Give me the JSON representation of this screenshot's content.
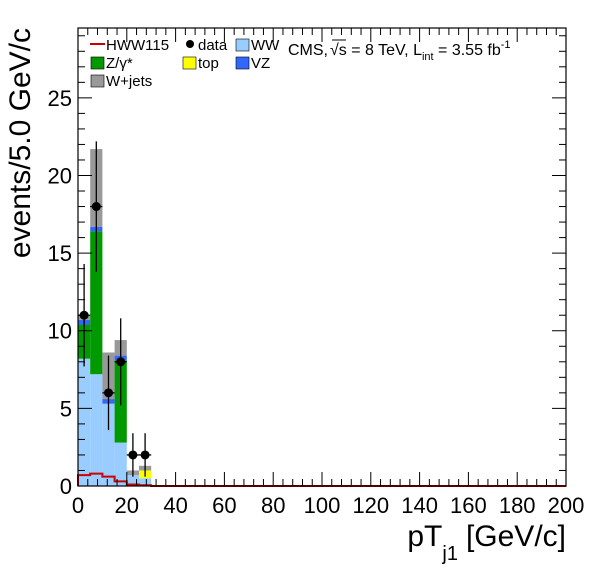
{
  "chart_data": {
    "type": "bar",
    "stacked": true,
    "xlabel": "pT",
    "xlabel_sub": "j1",
    "xlabel_unit": "[GeV/c]",
    "ylabel": "events/5.0 GeV/c",
    "xlim": [
      0,
      200
    ],
    "ylim": [
      0,
      29.5
    ],
    "bin_width": 5,
    "x_ticks": [
      0,
      20,
      40,
      60,
      80,
      100,
      120,
      140,
      160,
      180,
      200
    ],
    "y_ticks": [
      0,
      5,
      10,
      15,
      20,
      25
    ],
    "bin_edges": [
      0,
      5,
      10,
      15,
      20,
      25,
      30
    ],
    "series": [
      {
        "name": "WW",
        "color": "#99ccff",
        "values": [
          8.2,
          7.2,
          5.3,
          2.8,
          0.7,
          0.5
        ]
      },
      {
        "name": "top",
        "color": "#ffff00",
        "values": [
          0.0,
          0.0,
          0.0,
          0.0,
          0.0,
          0.5
        ]
      },
      {
        "name": "Z/γ*",
        "color": "#009900",
        "values": [
          2.2,
          9.2,
          0.0,
          5.3,
          0.0,
          0.0
        ]
      },
      {
        "name": "VZ",
        "color": "#3366ff",
        "values": [
          0.3,
          0.3,
          0.3,
          0.3,
          0.0,
          0.0
        ]
      },
      {
        "name": "W+jets",
        "color": "#999999",
        "values": [
          0.3,
          5.0,
          3.0,
          1.0,
          0.3,
          0.3
        ]
      }
    ],
    "signal": {
      "name": "HWW115",
      "color": "#cc0000",
      "values": [
        0.7,
        0.8,
        0.6,
        0.3,
        0.1,
        0.05
      ]
    },
    "data": {
      "name": "data",
      "points": [
        {
          "x": 2.5,
          "y": 11,
          "err": 3.3
        },
        {
          "x": 7.5,
          "y": 18,
          "err": 4.2
        },
        {
          "x": 12.5,
          "y": 6,
          "err": 2.4
        },
        {
          "x": 17.5,
          "y": 8,
          "err": 2.8
        },
        {
          "x": 22.5,
          "y": 2,
          "err": 1.4
        },
        {
          "x": 27.5,
          "y": 2,
          "err": 1.4
        }
      ]
    },
    "legend_placement": "top",
    "annotation": {
      "prefix": "CMS,",
      "sqrt_s": "s = 8 TeV, L",
      "lumi_sub": "int",
      "lumi_value": " = 3.55 fb",
      "lumi_sup": "-1"
    }
  }
}
